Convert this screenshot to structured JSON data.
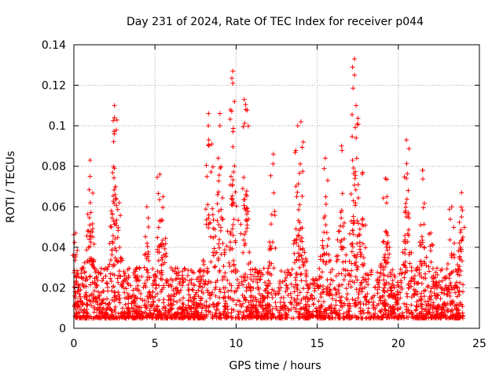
{
  "chart_data": {
    "type": "scatter",
    "title": "Day 231 of 2024, Rate Of TEC Index for receiver p044",
    "xlabel": "GPS time / hours",
    "ylabel": "ROTI / TECUs",
    "xlim": [
      0,
      25
    ],
    "ylim": [
      0,
      0.14
    ],
    "x_ticks": [
      0,
      5,
      10,
      15,
      20,
      25
    ],
    "y_ticks": [
      0,
      0.02,
      0.04,
      0.06,
      0.08,
      0.1,
      0.12,
      0.14
    ],
    "x_tick_labels": [
      "0",
      "5",
      "10",
      "15",
      "20",
      "25"
    ],
    "y_tick_labels": [
      "0",
      "0.02",
      "0.04",
      "0.06",
      "0.08",
      "0.1",
      "0.12",
      "0.14"
    ],
    "grid": true,
    "marker": "plus",
    "marker_color": "#ff0000",
    "series": [
      {
        "name": "ROTI",
        "hours_start": 0,
        "hours_end": 24,
        "typical_range": [
          0.005,
          0.04
        ],
        "peaks": [
          {
            "x": 0.1,
            "y": 0.047
          },
          {
            "x": 1.0,
            "y": 0.083
          },
          {
            "x": 1.0,
            "y": 0.075
          },
          {
            "x": 2.5,
            "y": 0.11
          },
          {
            "x": 2.5,
            "y": 0.104
          },
          {
            "x": 2.5,
            "y": 0.096
          },
          {
            "x": 2.5,
            "y": 0.079
          },
          {
            "x": 2.8,
            "y": 0.062
          },
          {
            "x": 4.5,
            "y": 0.06
          },
          {
            "x": 5.3,
            "y": 0.076
          },
          {
            "x": 5.5,
            "y": 0.065
          },
          {
            "x": 8.3,
            "y": 0.106
          },
          {
            "x": 8.5,
            "y": 0.091
          },
          {
            "x": 9.0,
            "y": 0.106
          },
          {
            "x": 9.0,
            "y": 0.1
          },
          {
            "x": 9.8,
            "y": 0.127
          },
          {
            "x": 9.8,
            "y": 0.121
          },
          {
            "x": 9.9,
            "y": 0.112
          },
          {
            "x": 10.5,
            "y": 0.113
          },
          {
            "x": 10.6,
            "y": 0.108
          },
          {
            "x": 12.3,
            "y": 0.086
          },
          {
            "x": 13.8,
            "y": 0.1
          },
          {
            "x": 14.0,
            "y": 0.102
          },
          {
            "x": 15.5,
            "y": 0.084
          },
          {
            "x": 16.5,
            "y": 0.09
          },
          {
            "x": 17.3,
            "y": 0.133
          },
          {
            "x": 17.3,
            "y": 0.125
          },
          {
            "x": 17.4,
            "y": 0.11
          },
          {
            "x": 17.4,
            "y": 0.094
          },
          {
            "x": 17.8,
            "y": 0.077
          },
          {
            "x": 19.2,
            "y": 0.074
          },
          {
            "x": 19.3,
            "y": 0.065
          },
          {
            "x": 20.5,
            "y": 0.093
          },
          {
            "x": 20.5,
            "y": 0.074
          },
          {
            "x": 21.5,
            "y": 0.078
          },
          {
            "x": 22.0,
            "y": 0.047
          },
          {
            "x": 23.3,
            "y": 0.06
          },
          {
            "x": 23.9,
            "y": 0.067
          },
          {
            "x": 23.9,
            "y": 0.055
          }
        ]
      }
    ]
  }
}
